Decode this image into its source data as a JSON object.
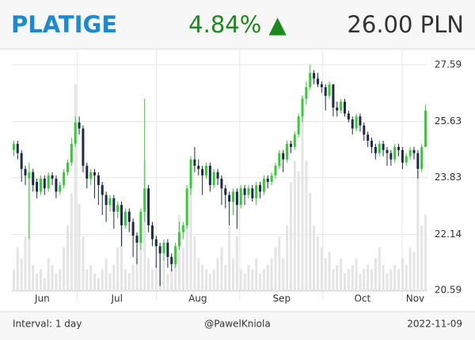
{
  "chart_data": {
    "type": "candlestick",
    "title": "PLATIGE",
    "change_label": "4.84% ▲",
    "price_label": "26.00 PLN",
    "footer_left": "Interval: 1 day",
    "footer_center": "@PawelKniola",
    "footer_right": "2022-11-09",
    "log_scale": true,
    "grid": true,
    "up_color": "#33cc33",
    "down_color": "#1c2b4a",
    "volume_color": "#e4e4e4",
    "ylim": [
      20.57,
      28.16
    ],
    "yticks": [
      20.59,
      22.14,
      23.83,
      25.63,
      27.59
    ],
    "vlim": [
      0,
      100
    ],
    "xlim": [
      0,
      108
    ],
    "xticks": [
      {
        "value": 7.9,
        "label": "Jun"
      },
      {
        "value": 27.3,
        "label": "Jul"
      },
      {
        "value": 48.3,
        "label": "Aug"
      },
      {
        "value": 70.1,
        "label": "Sep"
      },
      {
        "value": 91.1,
        "label": "Oct"
      },
      {
        "value": 104.8,
        "label": "Nov"
      }
    ],
    "xgrid": [
      17,
      37.6,
      59.2,
      80.8,
      101.4
    ],
    "open": [
      24.7,
      24.9,
      24.6,
      24.1,
      23.8,
      24.0,
      23.7,
      23.4,
      23.8,
      23.5,
      23.9,
      23.8,
      23.4,
      23.6,
      24.0,
      24.3,
      24.9,
      25.6,
      25.4,
      24.2,
      23.8,
      24.0,
      23.9,
      23.6,
      23.3,
      23.0,
      23.2,
      22.8,
      23.0,
      22.4,
      22.8,
      22.5,
      22.1,
      21.9,
      22.8,
      23.5,
      22.4,
      22.0,
      21.8,
      21.6,
      21.9,
      21.5,
      21.3,
      21.8,
      22.2,
      22.4,
      23.5,
      24.4,
      24.2,
      24.1,
      23.9,
      24.2,
      23.6,
      24.0,
      23.8,
      23.5,
      23.3,
      23.1,
      23.4,
      23.0,
      23.5,
      23.3,
      23.5,
      23.2,
      23.6,
      23.4,
      23.8,
      23.7,
      23.9,
      24.2,
      24.6,
      24.4,
      24.9,
      24.8,
      25.2,
      25.8,
      26.4,
      26.8,
      27.3,
      27.1,
      26.9,
      26.8,
      26.5,
      26.9,
      26.1,
      26.0,
      26.3,
      25.9,
      25.7,
      25.4,
      25.8,
      25.5,
      25.2,
      25.0,
      24.8,
      24.6,
      24.9,
      24.7,
      24.6,
      24.4,
      24.8,
      24.7,
      24.3,
      24.5,
      24.7,
      24.6,
      24.1,
      24.8
    ],
    "high": [
      25.0,
      25.0,
      24.7,
      24.2,
      24.3,
      24.1,
      23.8,
      23.9,
      23.9,
      24.0,
      24.0,
      23.9,
      23.7,
      24.1,
      24.4,
      25.1,
      25.8,
      25.8,
      25.5,
      24.3,
      24.1,
      24.1,
      24.0,
      23.7,
      23.4,
      23.3,
      23.3,
      23.1,
      23.1,
      22.9,
      22.9,
      22.6,
      22.2,
      22.9,
      26.4,
      23.6,
      22.5,
      22.1,
      21.9,
      22.0,
      22.0,
      21.6,
      21.9,
      22.5,
      22.5,
      23.6,
      24.5,
      24.8,
      24.4,
      24.2,
      24.3,
      24.3,
      24.1,
      24.1,
      23.9,
      23.6,
      23.4,
      23.5,
      23.5,
      23.6,
      23.6,
      23.6,
      23.6,
      23.7,
      23.7,
      23.9,
      23.9,
      24.0,
      24.3,
      24.7,
      24.7,
      25.0,
      25.0,
      25.3,
      25.9,
      26.5,
      27.0,
      27.6,
      27.4,
      27.3,
      27.0,
      26.9,
      27.0,
      26.9,
      26.3,
      26.4,
      26.4,
      26.0,
      25.8,
      25.9,
      25.9,
      25.6,
      25.3,
      25.1,
      24.9,
      25.0,
      25.0,
      24.8,
      24.7,
      24.9,
      24.9,
      24.8,
      24.6,
      24.8,
      24.8,
      24.7,
      24.9,
      26.2
    ],
    "low": [
      24.5,
      24.4,
      23.7,
      23.6,
      22.0,
      23.4,
      23.2,
      23.3,
      23.3,
      23.4,
      23.6,
      23.2,
      23.3,
      23.5,
      23.9,
      24.2,
      24.8,
      25.2,
      24.0,
      23.5,
      23.6,
      23.2,
      23.0,
      22.7,
      22.5,
      22.8,
      22.3,
      22.6,
      21.8,
      22.3,
      22.2,
      21.5,
      21.3,
      21.7,
      22.5,
      22.2,
      21.8,
      21.2,
      20.7,
      21.4,
      21.2,
      21.1,
      21.2,
      21.7,
      22.0,
      22.3,
      23.3,
      24.0,
      23.9,
      23.3,
      23.8,
      23.4,
      23.5,
      23.6,
      23.0,
      22.9,
      22.4,
      22.7,
      22.3,
      22.9,
      23.0,
      23.2,
      23.1,
      23.0,
      23.2,
      23.3,
      23.5,
      23.6,
      23.8,
      24.1,
      24.0,
      24.3,
      24.6,
      24.7,
      25.1,
      25.6,
      26.2,
      26.7,
      26.9,
      26.8,
      26.6,
      26.0,
      26.4,
      25.8,
      25.8,
      25.9,
      25.8,
      25.6,
      25.2,
      25.3,
      25.3,
      25.0,
      24.8,
      24.6,
      24.4,
      24.5,
      24.5,
      24.2,
      24.2,
      24.3,
      24.5,
      24.1,
      24.2,
      24.4,
      24.4,
      23.8,
      24.0,
      24.8
    ],
    "close": [
      24.9,
      24.6,
      24.1,
      23.9,
      24.0,
      23.6,
      23.4,
      23.8,
      23.5,
      23.9,
      23.8,
      23.4,
      23.6,
      24.0,
      24.3,
      24.9,
      25.6,
      25.4,
      24.2,
      23.8,
      24.0,
      23.9,
      23.6,
      23.3,
      23.0,
      23.2,
      22.8,
      23.0,
      22.4,
      22.8,
      22.5,
      22.1,
      21.9,
      22.8,
      23.5,
      22.4,
      22.0,
      21.8,
      21.6,
      21.9,
      21.5,
      21.3,
      21.8,
      22.2,
      22.4,
      23.5,
      24.4,
      24.2,
      24.1,
      23.9,
      24.2,
      23.6,
      24.0,
      23.8,
      23.5,
      23.3,
      23.1,
      23.4,
      23.0,
      23.5,
      23.3,
      23.5,
      23.2,
      23.6,
      23.4,
      23.8,
      23.7,
      23.9,
      24.2,
      24.6,
      24.4,
      24.9,
      24.8,
      25.2,
      25.8,
      26.4,
      26.8,
      27.3,
      27.1,
      26.9,
      26.8,
      26.5,
      26.9,
      26.1,
      26.0,
      26.3,
      25.9,
      25.7,
      25.4,
      25.8,
      25.5,
      25.2,
      25.0,
      24.8,
      24.6,
      24.9,
      24.7,
      24.6,
      24.4,
      24.8,
      24.7,
      24.3,
      24.5,
      24.7,
      24.6,
      24.1,
      24.8,
      26.0
    ],
    "volume": [
      10,
      20,
      15,
      25,
      50,
      12,
      8,
      10,
      6,
      15,
      12,
      8,
      10,
      20,
      30,
      45,
      95,
      40,
      25,
      10,
      12,
      8,
      6,
      10,
      15,
      8,
      12,
      20,
      30,
      10,
      8,
      12,
      15,
      25,
      60,
      15,
      10,
      12,
      20,
      15,
      8,
      10,
      14,
      35,
      20,
      40,
      50,
      25,
      15,
      12,
      10,
      8,
      10,
      15,
      20,
      12,
      30,
      15,
      25,
      10,
      8,
      12,
      10,
      15,
      8,
      10,
      12,
      15,
      20,
      25,
      15,
      30,
      50,
      60,
      55,
      90,
      60,
      45,
      30,
      25,
      20,
      15,
      18,
      10,
      12,
      15,
      8,
      10,
      12,
      15,
      8,
      10,
      12,
      10,
      15,
      20,
      12,
      8,
      10,
      12,
      10,
      15,
      12,
      20,
      18,
      55,
      30,
      35
    ]
  }
}
